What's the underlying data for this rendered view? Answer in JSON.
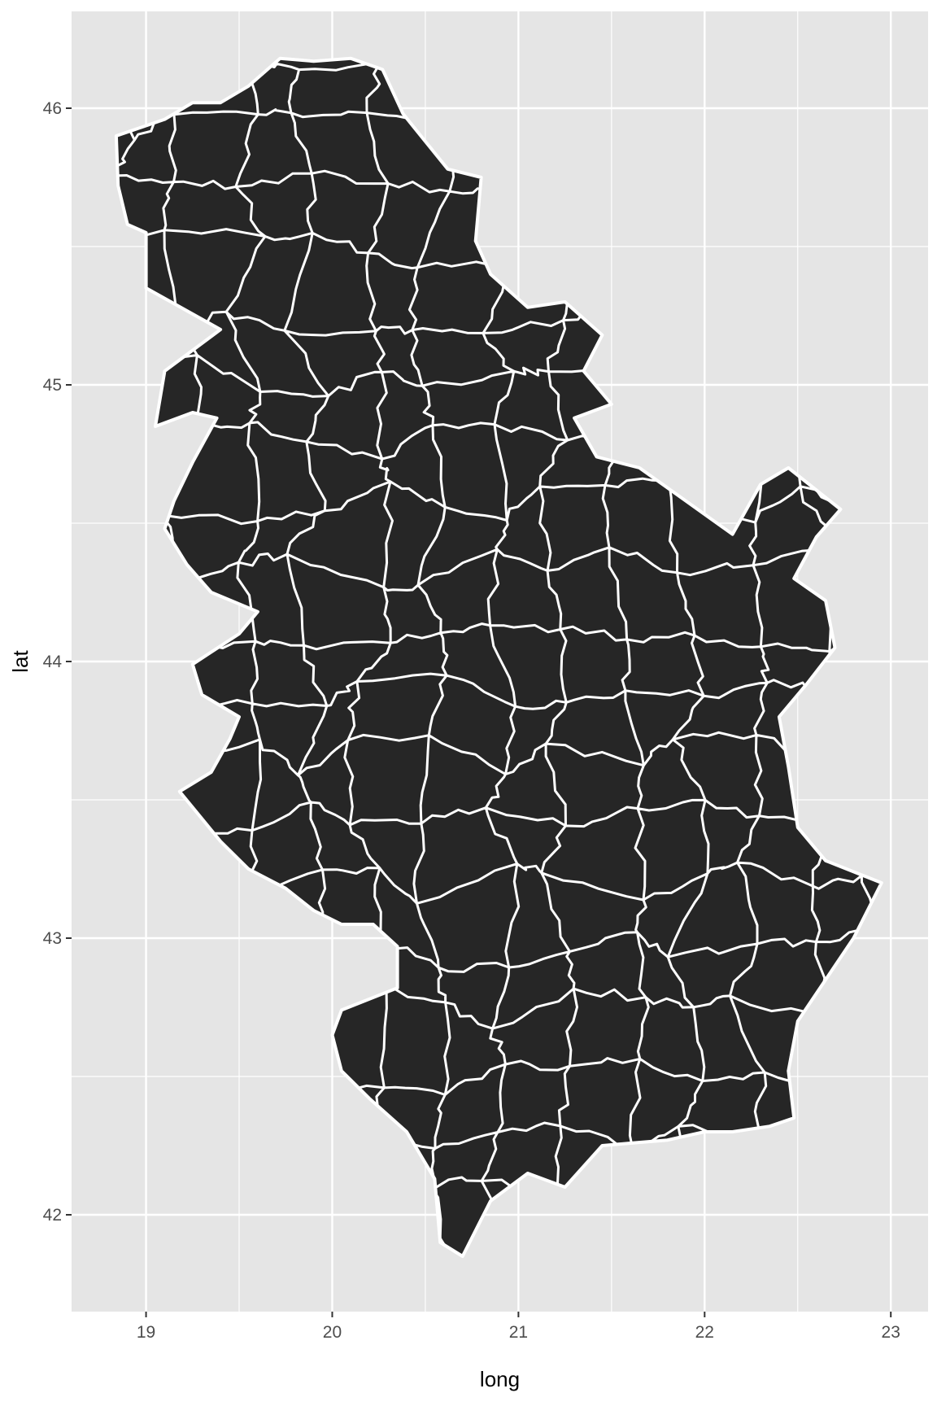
{
  "chart_data": {
    "type": "map",
    "title": "",
    "xlabel": "long",
    "ylabel": "lat",
    "xlim": [
      18.6,
      23.2
    ],
    "ylim": [
      41.65,
      46.35
    ],
    "x_major": [
      19,
      20,
      21,
      22,
      23
    ],
    "y_major": [
      42,
      43,
      44,
      45,
      46
    ],
    "x_minor": [
      19.5,
      20.5,
      21.5,
      22.5
    ],
    "y_minor": [
      42.5,
      43.5,
      44.5,
      45.5
    ],
    "x_tick_labels": [
      "19",
      "20",
      "21",
      "22",
      "23"
    ],
    "y_tick_labels": [
      "42",
      "43",
      "44",
      "45",
      "46"
    ],
    "grid": true,
    "legend": "none",
    "colors": {
      "panel": "#e5e5e5",
      "grid": "#ffffff",
      "fill": "#262626",
      "border": "#ffffff"
    },
    "outline": [
      [
        18.84,
        45.9
      ],
      [
        19.1,
        45.96
      ],
      [
        19.25,
        46.02
      ],
      [
        19.4,
        46.02
      ],
      [
        19.55,
        46.08
      ],
      [
        19.72,
        46.18
      ],
      [
        19.9,
        46.17
      ],
      [
        20.1,
        46.18
      ],
      [
        20.27,
        46.14
      ],
      [
        20.38,
        45.98
      ],
      [
        20.5,
        45.88
      ],
      [
        20.62,
        45.78
      ],
      [
        20.8,
        45.75
      ],
      [
        20.77,
        45.52
      ],
      [
        20.85,
        45.4
      ],
      [
        21.05,
        45.28
      ],
      [
        21.25,
        45.3
      ],
      [
        21.45,
        45.18
      ],
      [
        21.35,
        45.05
      ],
      [
        21.5,
        44.93
      ],
      [
        21.3,
        44.88
      ],
      [
        21.42,
        44.74
      ],
      [
        21.65,
        44.7
      ],
      [
        21.9,
        44.58
      ],
      [
        22.15,
        44.46
      ],
      [
        22.3,
        44.64
      ],
      [
        22.45,
        44.7
      ],
      [
        22.73,
        44.55
      ],
      [
        22.6,
        44.45
      ],
      [
        22.48,
        44.3
      ],
      [
        22.65,
        44.22
      ],
      [
        22.7,
        44.05
      ],
      [
        22.55,
        43.92
      ],
      [
        22.4,
        43.8
      ],
      [
        22.45,
        43.62
      ],
      [
        22.5,
        43.4
      ],
      [
        22.65,
        43.28
      ],
      [
        22.95,
        43.2
      ],
      [
        22.8,
        43.0
      ],
      [
        22.68,
        42.88
      ],
      [
        22.5,
        42.7
      ],
      [
        22.45,
        42.52
      ],
      [
        22.48,
        42.35
      ],
      [
        22.35,
        42.32
      ],
      [
        22.15,
        42.3
      ],
      [
        22.0,
        42.3
      ],
      [
        21.8,
        42.27
      ],
      [
        21.62,
        42.26
      ],
      [
        21.45,
        42.25
      ],
      [
        21.25,
        42.1
      ],
      [
        21.05,
        42.15
      ],
      [
        20.85,
        42.05
      ],
      [
        20.7,
        41.85
      ],
      [
        20.58,
        41.9
      ],
      [
        20.55,
        42.13
      ],
      [
        20.4,
        42.3
      ],
      [
        20.2,
        42.42
      ],
      [
        20.05,
        42.52
      ],
      [
        20.0,
        42.65
      ],
      [
        20.05,
        42.74
      ],
      [
        20.35,
        42.82
      ],
      [
        20.35,
        42.97
      ],
      [
        20.22,
        43.05
      ],
      [
        20.05,
        43.05
      ],
      [
        19.9,
        43.1
      ],
      [
        19.75,
        43.18
      ],
      [
        19.55,
        43.25
      ],
      [
        19.4,
        43.35
      ],
      [
        19.18,
        43.53
      ],
      [
        19.35,
        43.6
      ],
      [
        19.45,
        43.72
      ],
      [
        19.5,
        43.8
      ],
      [
        19.3,
        43.88
      ],
      [
        19.25,
        43.99
      ],
      [
        19.5,
        44.1
      ],
      [
        19.6,
        44.18
      ],
      [
        19.35,
        44.25
      ],
      [
        19.22,
        44.35
      ],
      [
        19.1,
        44.48
      ],
      [
        19.15,
        44.58
      ],
      [
        19.25,
        44.72
      ],
      [
        19.38,
        44.88
      ],
      [
        19.25,
        44.9
      ],
      [
        19.05,
        44.85
      ],
      [
        19.1,
        45.05
      ],
      [
        19.4,
        45.2
      ],
      [
        19.0,
        45.35
      ],
      [
        19.0,
        45.55
      ],
      [
        18.9,
        45.58
      ],
      [
        18.85,
        45.72
      ],
      [
        18.84,
        45.9
      ]
    ]
  }
}
